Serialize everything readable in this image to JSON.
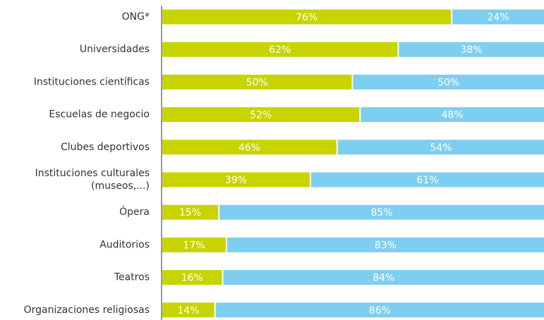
{
  "chart_data": {
    "type": "stacked_bar_horizontal",
    "categories": [
      "ONG*",
      "Universidades",
      "Instituciones científicas",
      "Escuelas de negocio",
      "Clubes deportivos",
      "Instituciones culturales\n(museos,...)",
      "Ópera",
      "Auditorios",
      "Teatros",
      "Organizaciones religiosas"
    ],
    "xlim": [
      0,
      100
    ],
    "series": [
      {
        "color": "#c8d400",
        "values": [
          76,
          62,
          50,
          52,
          46,
          39,
          15,
          17,
          16,
          14
        ],
        "value_labels": [
          "76%",
          "62%",
          "50%",
          "52%",
          "46%",
          "39%",
          "15%",
          "17%",
          "16%",
          "14%"
        ]
      },
      {
        "color": "#7ecef0",
        "values": [
          24,
          38,
          50,
          48,
          54,
          61,
          85,
          83,
          84,
          86
        ],
        "value_labels": [
          "24%",
          "38%",
          "50%",
          "48%",
          "54%",
          "61%",
          "85%",
          "83%",
          "84%",
          "86%"
        ]
      }
    ]
  }
}
